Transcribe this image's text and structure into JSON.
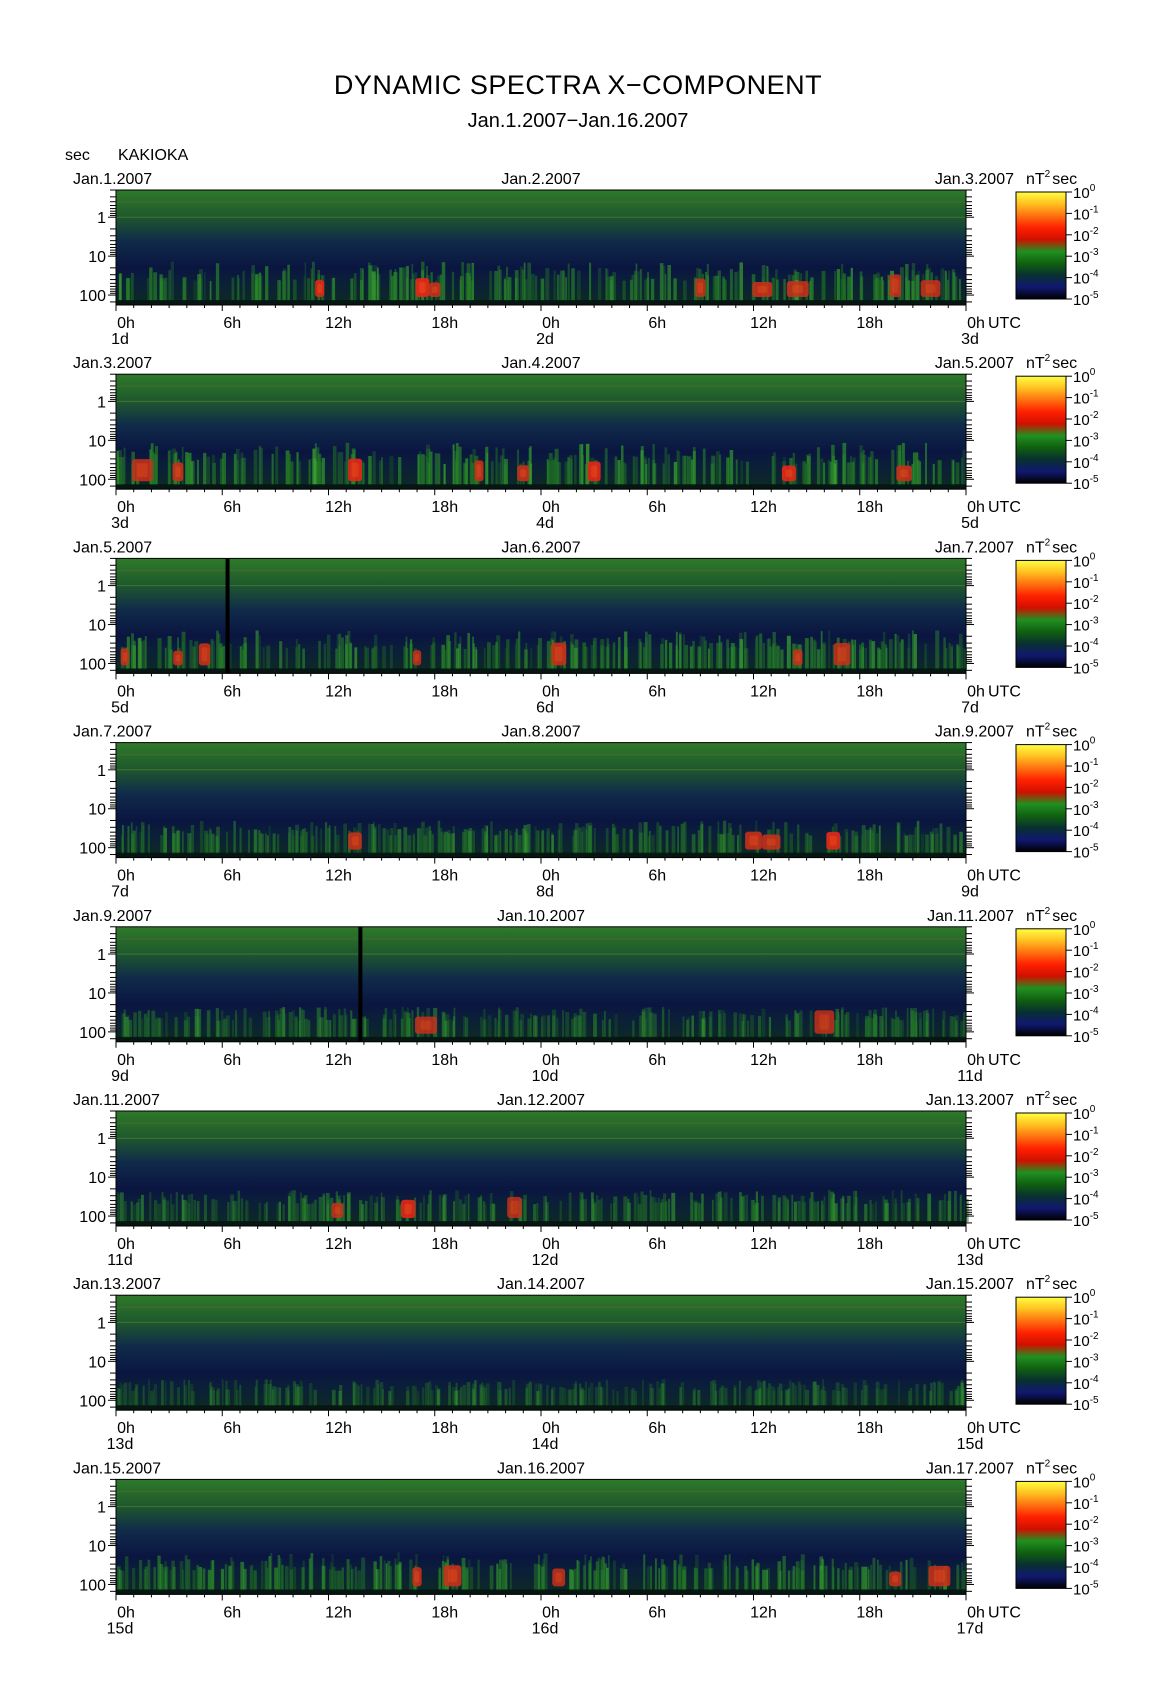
{
  "title": "DYNAMIC SPECTRA X−COMPONENT",
  "subtitle": "Jan.1.2007−Jan.16.2007",
  "y_unit": "sec",
  "station": "KAKIOKA",
  "colorbar": {
    "unit": "nT²sec",
    "unit_base": "nT",
    "unit_sup": "2",
    "unit_tail": "sec",
    "tick_base": "10",
    "tick_exponents": [
      "0",
      "-1",
      "-2",
      "-3",
      "-4",
      "-5"
    ],
    "colors": [
      "#ffff40",
      "#ffc020",
      "#ff7010",
      "#ff2000",
      "#d01000",
      "#209020",
      "#106010",
      "#083030",
      "#101870",
      "#000000"
    ]
  },
  "axis": {
    "x_ticks": [
      "0h",
      "6h",
      "12h",
      "18h",
      "0h",
      "6h",
      "12h",
      "18h",
      "0h"
    ],
    "x_unit": "UTC",
    "y_ticks": [
      "1",
      "10",
      "100"
    ]
  },
  "chart_data": {
    "type": "heatmap",
    "title": "DYNAMIC SPECTRA X−COMPONENT",
    "subtitle": "Jan.1.2007−Jan.16.2007",
    "station": "KAKIOKA",
    "ylabel": "sec",
    "xlabel": "UTC",
    "y_scale": "log",
    "y_ticks": [
      1,
      10,
      100
    ],
    "color_scale": "log",
    "color_range": [
      1e-05,
      1
    ],
    "color_unit": "nT²sec",
    "panels": [
      {
        "left_date": "Jan.1.2007",
        "mid_date": "Jan.2.2007",
        "right_date": "Jan.3.2007",
        "day_labels": [
          "1d",
          "2d",
          "3d"
        ],
        "intensity": 0.85,
        "vline_hour": null,
        "bursts": [
          [
            11.5,
            0.9
          ],
          [
            17.3,
            1.0
          ],
          [
            18.0,
            0.85
          ],
          [
            33.0,
            0.8
          ],
          [
            36.5,
            0.85
          ],
          [
            38.5,
            0.8
          ],
          [
            44.0,
            0.8
          ],
          [
            46.0,
            0.75
          ]
        ]
      },
      {
        "left_date": "Jan.3.2007",
        "mid_date": "Jan.4.2007",
        "right_date": "Jan.5.2007",
        "day_labels": [
          "3d",
          "4d",
          "5d"
        ],
        "intensity": 0.95,
        "vline_hour": null,
        "bursts": [
          [
            1.5,
            0.8
          ],
          [
            3.5,
            0.85
          ],
          [
            13.5,
            0.9
          ],
          [
            20.5,
            0.85
          ],
          [
            23.0,
            0.85
          ],
          [
            27.0,
            0.9
          ],
          [
            38.0,
            0.9
          ],
          [
            44.5,
            0.85
          ]
        ]
      },
      {
        "left_date": "Jan.5.2007",
        "mid_date": "Jan.6.2007",
        "right_date": "Jan.7.2007",
        "day_labels": [
          "5d",
          "6d",
          "7d"
        ],
        "intensity": 0.85,
        "vline_hour": 6.3,
        "bursts": [
          [
            0.5,
            0.8
          ],
          [
            3.5,
            0.8
          ],
          [
            5.0,
            0.85
          ],
          [
            17.0,
            0.75
          ],
          [
            25.0,
            0.85
          ],
          [
            38.5,
            0.8
          ],
          [
            41.0,
            0.75
          ]
        ]
      },
      {
        "left_date": "Jan.7.2007",
        "mid_date": "Jan.8.2007",
        "right_date": "Jan.9.2007",
        "day_labels": [
          "7d",
          "8d",
          "9d"
        ],
        "intensity": 0.6,
        "vline_hour": null,
        "bursts": [
          [
            13.5,
            0.85
          ],
          [
            36.0,
            0.85
          ],
          [
            37.0,
            0.8
          ],
          [
            40.5,
            0.9
          ]
        ]
      },
      {
        "left_date": "Jan.9.2007",
        "mid_date": "Jan.10.2007",
        "right_date": "Jan.11.2007",
        "day_labels": [
          "9d",
          "10d",
          "11d"
        ],
        "intensity": 0.5,
        "vline_hour": 13.8,
        "bursts": [
          [
            17.5,
            0.7
          ],
          [
            40.0,
            0.7
          ]
        ]
      },
      {
        "left_date": "Jan.11.2007",
        "mid_date": "Jan.12.2007",
        "right_date": "Jan.13.2007",
        "day_labels": [
          "11d",
          "12d",
          "13d"
        ],
        "intensity": 0.55,
        "vline_hour": null,
        "bursts": [
          [
            12.5,
            0.75
          ],
          [
            16.5,
            0.9
          ],
          [
            22.5,
            0.7
          ]
        ]
      },
      {
        "left_date": "Jan.13.2007",
        "mid_date": "Jan.14.2007",
        "right_date": "Jan.15.2007",
        "day_labels": [
          "13d",
          "14d",
          "15d"
        ],
        "intensity": 0.25,
        "vline_hour": null,
        "bursts": []
      },
      {
        "left_date": "Jan.15.2007",
        "mid_date": "Jan.16.2007",
        "right_date": "Jan.17.2007",
        "day_labels": [
          "15d",
          "16d",
          "17d"
        ],
        "intensity": 0.8,
        "vline_hour": null,
        "bursts": [
          [
            17.0,
            0.85
          ],
          [
            19.0,
            0.85
          ],
          [
            25.0,
            0.75
          ],
          [
            44.0,
            0.8
          ],
          [
            46.5,
            0.8
          ]
        ]
      }
    ]
  }
}
